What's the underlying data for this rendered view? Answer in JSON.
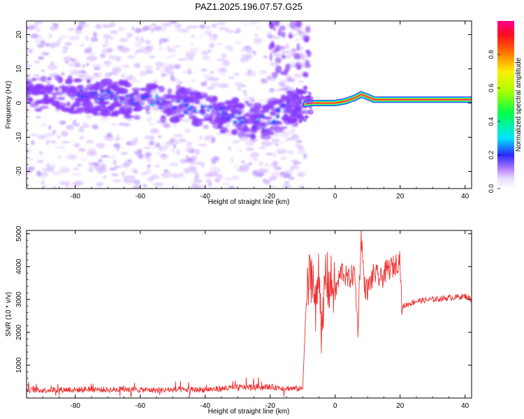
{
  "figure_title": "PAZ1.2025.196.07.57.G25",
  "colors": {
    "snr_line": "#ee3333",
    "spectrum_band": "#ff2d55",
    "purple_noise": "#8a3bff",
    "light_purple": "#d6b8ff",
    "blue_core": "#2244ff",
    "cyan": "#00e0ff",
    "green": "#22ee44",
    "yellow": "#ffee00"
  },
  "chart_data": [
    {
      "type": "heatmap",
      "title": "PAZ1.2025.196.07.57.G25",
      "xlabel": "Height of straight line (km)",
      "ylabel": "Frequency (Hz)",
      "xlim": [
        -95,
        42
      ],
      "ylim": [
        -25,
        24
      ],
      "xticks": [
        -80,
        -60,
        -40,
        -20,
        0,
        20,
        40
      ],
      "yticks": [
        -20,
        -10,
        0,
        10,
        20
      ],
      "colorbar": {
        "label": "Normalized spectral amplitude",
        "range": [
          0.0,
          1.0
        ],
        "ticks": [
          0.0,
          0.2,
          0.4,
          0.6,
          0.8
        ],
        "tick_labels": [
          "0.0",
          "0.2",
          "0.4",
          "0.6",
          "0.8"
        ],
        "colormap": "rainbow (white-purple-blue-cyan-green-yellow-red-magenta)"
      },
      "ridge_frequency": {
        "x": [
          -95,
          -85,
          -75,
          -65,
          -55,
          -45,
          -38,
          -30,
          -22,
          -15,
          -8,
          -3,
          0,
          3,
          6,
          8,
          10,
          12,
          20,
          30,
          42
        ],
        "y": [
          3,
          2.5,
          2,
          1,
          0.5,
          -1,
          -3,
          -4,
          -6,
          -2,
          0,
          0,
          0,
          0.5,
          1.5,
          2.5,
          1.8,
          1,
          1,
          1,
          1
        ]
      }
    },
    {
      "type": "line",
      "xlabel": "Height of straight line (km)",
      "ylabel": "SNR (10 * v/v)",
      "xlim": [
        -95,
        42
      ],
      "ylim": [
        0,
        5100
      ],
      "xticks": [
        -80,
        -60,
        -40,
        -20,
        0,
        20,
        40
      ],
      "yticks": [
        1000,
        2000,
        3000,
        4000,
        5000
      ],
      "series": [
        {
          "x": [
            -95,
            -90,
            -85,
            -80,
            -75,
            -70,
            -65,
            -60,
            -55,
            -50,
            -45,
            -40,
            -35,
            -30,
            -25,
            -20,
            -15,
            -10,
            -9,
            -8,
            -7,
            -6,
            -5,
            -4,
            -3,
            -2,
            -1,
            0,
            2,
            4,
            6,
            7,
            8,
            9,
            10,
            12,
            14,
            16,
            18,
            20,
            20.5,
            21,
            25,
            30,
            35,
            40,
            42
          ],
          "y": [
            250,
            240,
            260,
            250,
            270,
            250,
            260,
            250,
            240,
            250,
            250,
            260,
            280,
            320,
            350,
            340,
            300,
            280,
            2800,
            3600,
            3900,
            2500,
            4200,
            1600,
            3900,
            3400,
            3500,
            3200,
            3900,
            3600,
            3800,
            2100,
            5000,
            3400,
            3300,
            3800,
            3600,
            3900,
            4000,
            4250,
            2600,
            2800,
            2950,
            3000,
            3050,
            3100,
            3000
          ]
        }
      ]
    }
  ]
}
